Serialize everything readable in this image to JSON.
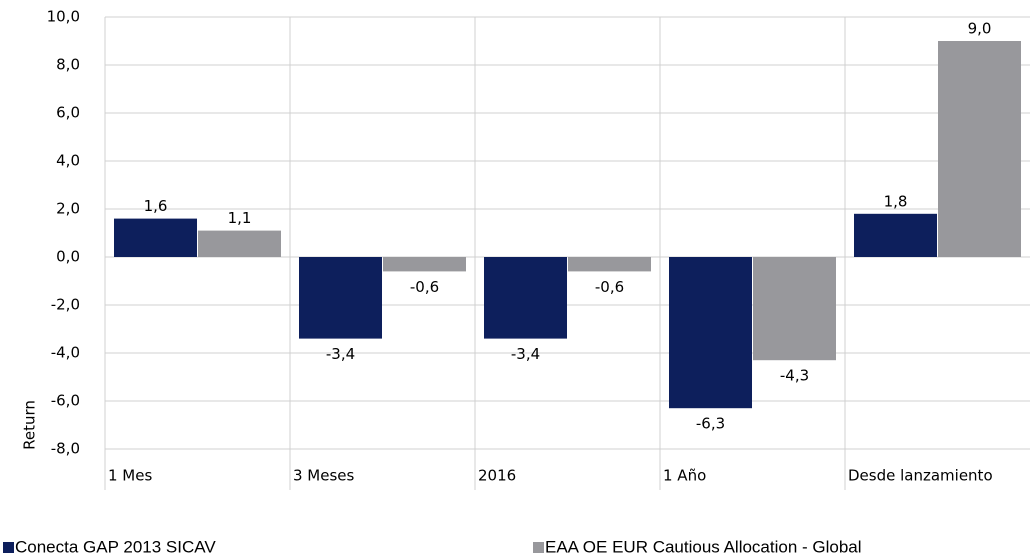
{
  "chart_data": {
    "type": "bar",
    "y_label": "Return",
    "categories": [
      "1 Mes",
      "3 Meses",
      "2016",
      "1 Año",
      "Desde lanzamiento"
    ],
    "series": [
      {
        "name": "Conecta GAP 2013 SICAV",
        "color": "#0d1f5c",
        "values": [
          1.6,
          -3.4,
          -3.4,
          -6.3,
          1.8
        ],
        "value_labels": [
          "1,6",
          "-3,4",
          "-3,4",
          "-6,3",
          "1,8"
        ]
      },
      {
        "name": "EAA OE EUR Cautious Allocation - Global",
        "color": "#98989c",
        "values": [
          1.1,
          -0.6,
          -0.6,
          -4.3,
          9.0
        ],
        "value_labels": [
          "1,1",
          "-0,6",
          "-0,6",
          "-4,3",
          "9,0"
        ]
      }
    ],
    "ylim": [
      -8,
      10
    ],
    "yticks": [
      {
        "value": -8,
        "label": "-8,0"
      },
      {
        "value": -6,
        "label": "-6,0"
      },
      {
        "value": -4,
        "label": "-4,0"
      },
      {
        "value": -2,
        "label": "-2,0"
      },
      {
        "value": 0,
        "label": "0,0"
      },
      {
        "value": 2,
        "label": "2,0"
      },
      {
        "value": 4,
        "label": "4,0"
      },
      {
        "value": 6,
        "label": "6,0"
      },
      {
        "value": 8,
        "label": "8,0"
      },
      {
        "value": 10,
        "label": "10,0"
      }
    ],
    "grid": true
  }
}
